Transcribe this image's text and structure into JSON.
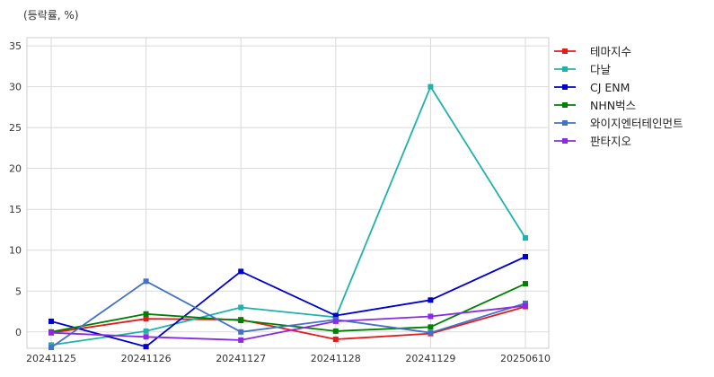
{
  "chart_data": {
    "type": "line",
    "unit_label": "(등락률, %)",
    "x": [
      "20241125",
      "20241126",
      "20241127",
      "20241128",
      "20241129",
      "20250610"
    ],
    "ylim": [
      -2,
      36
    ],
    "yticks": [
      0,
      5,
      10,
      15,
      20,
      25,
      30,
      35
    ],
    "grid": true,
    "legend_position": "right-top-outside",
    "series": [
      {
        "name": "테마지수",
        "color": "#e41a1c",
        "values": [
          -0.1,
          1.6,
          1.5,
          -0.9,
          -0.2,
          3.1
        ]
      },
      {
        "name": "다날",
        "color": "#20b2aa",
        "values": [
          -1.6,
          0.1,
          3.0,
          1.8,
          30.0,
          11.5
        ]
      },
      {
        "name": "CJ ENM",
        "color": "#0000cd",
        "values": [
          1.3,
          -1.8,
          7.4,
          2.0,
          3.9,
          9.2
        ]
      },
      {
        "name": "NHN벅스",
        "color": "#008000",
        "values": [
          0.0,
          2.2,
          1.4,
          0.1,
          0.6,
          5.9
        ]
      },
      {
        "name": "와이지엔터테인먼트",
        "color": "#4472c4",
        "values": [
          -1.9,
          6.2,
          0.0,
          1.5,
          -0.1,
          3.5
        ]
      },
      {
        "name": "판타지오",
        "color": "#8a2be2",
        "values": [
          -0.1,
          -0.6,
          -1.0,
          1.3,
          1.9,
          3.2
        ]
      }
    ]
  }
}
